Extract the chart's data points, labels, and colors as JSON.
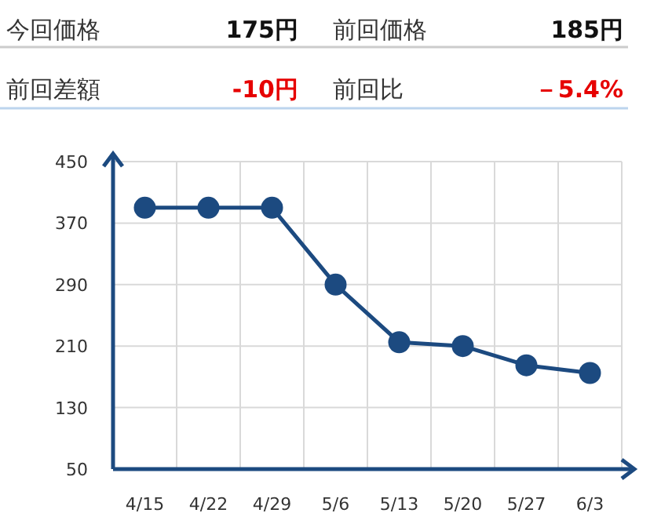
{
  "chart_data": [
    {
      "type": "other",
      "annotations": [
        "今回価格",
        "175円",
        "前回価格",
        "185円",
        "前回差額",
        "-10円",
        "前回比",
        "－5.4%"
      ]
    },
    {
      "type": "line",
      "categories": [
        "4/15",
        "4/22",
        "4/29",
        "5/6",
        "5/13",
        "5/20",
        "5/27",
        "6/3"
      ],
      "series": [
        {
          "color": "#1c4a80",
          "values": [
            390,
            390,
            390,
            290,
            215,
            210,
            185,
            175
          ]
        }
      ],
      "ylim": [
        50,
        450
      ],
      "yticks": [
        50,
        130,
        210,
        290,
        370,
        450
      ],
      "grid": true,
      "marker": "circle",
      "line_style": "solid"
    }
  ]
}
